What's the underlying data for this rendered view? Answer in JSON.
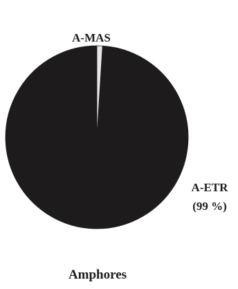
{
  "chart_data": {
    "type": "pie",
    "title": "Amphores",
    "slices": [
      {
        "name": "A-ETR",
        "value": 99,
        "value_label": "(99 %)",
        "color": "#1e1b1c"
      },
      {
        "name": "A-MAS",
        "value": 1,
        "value_label": "",
        "color": "#e6e6e6"
      }
    ]
  }
}
